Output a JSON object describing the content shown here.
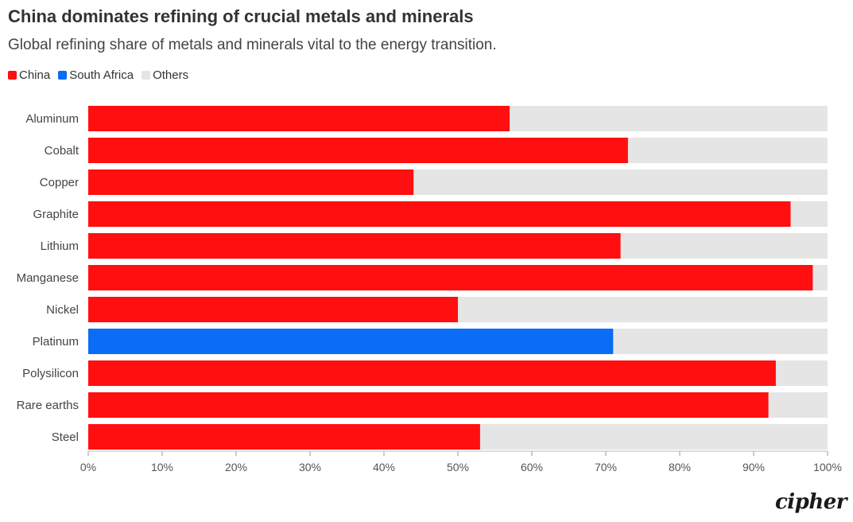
{
  "header": {
    "title": "China dominates refining of crucial metals and minerals",
    "subtitle": "Global refining share of metals and minerals vital to the energy transition."
  },
  "legend": [
    {
      "label": "China",
      "color": "#ff0f0f"
    },
    {
      "label": "South Africa",
      "color": "#0b6cf5"
    },
    {
      "label": "Others",
      "color": "#e5e5e5"
    }
  ],
  "brand": "cipher",
  "chart_data": {
    "type": "bar",
    "orientation": "horizontal",
    "stacked": true,
    "categories": [
      "Aluminum",
      "Cobalt",
      "Copper",
      "Graphite",
      "Lithium",
      "Manganese",
      "Nickel",
      "Platinum",
      "Polysilicon",
      "Rare earths",
      "Steel"
    ],
    "values": [
      57,
      73,
      44,
      95,
      72,
      98,
      50,
      71,
      93,
      92,
      53
    ],
    "leader": [
      "China",
      "China",
      "China",
      "China",
      "China",
      "China",
      "China",
      "South Africa",
      "China",
      "China",
      "China"
    ],
    "xlim": [
      0,
      100
    ],
    "xticks": [
      "0%",
      "10%",
      "20%",
      "30%",
      "40%",
      "50%",
      "60%",
      "70%",
      "80%",
      "90%",
      "100%"
    ],
    "legend_position": "top-left",
    "grid": false
  }
}
